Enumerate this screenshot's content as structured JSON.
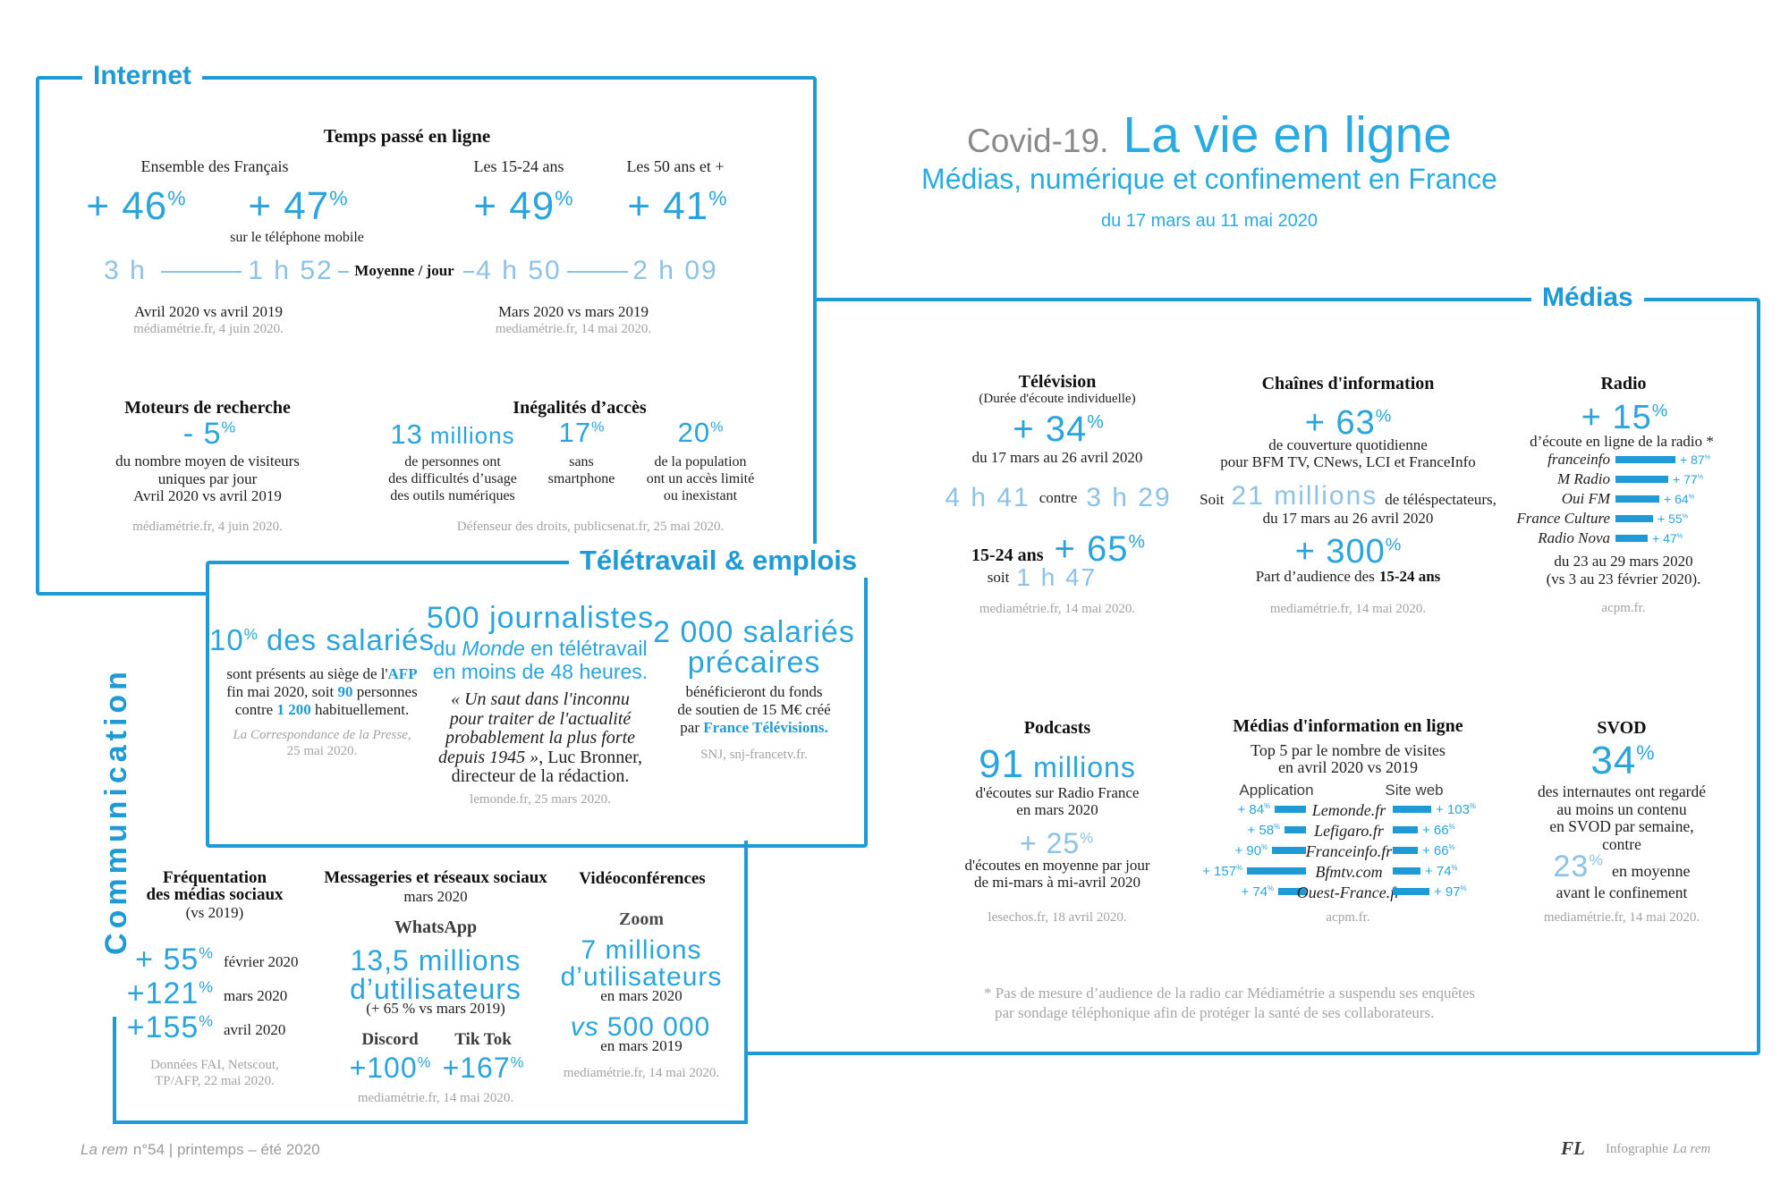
{
  "sym": {
    "pct": "%"
  },
  "colors": {
    "frame": "#1e9ad6",
    "accent": "#2aa4dd",
    "light": "#8cc2e8",
    "title": "#29abe2",
    "muted": "#a3a3a3",
    "covid_gray": "#8a8a8a"
  },
  "header": {
    "covid": "Covid-19.",
    "title": "La vie en ligne",
    "subtitle": "Médias, numérique et confinement en France",
    "period": "du 17 mars au 11 mai 2020"
  },
  "internet": {
    "label": "Internet",
    "time": {
      "heading": "Temps passé en ligne",
      "col1_label": "Ensemble des Français",
      "col3_label": "Les 15-24 ans",
      "col4_label": "Les 50 ans et +",
      "pct1": "+ 46",
      "pct2": "+ 47",
      "pct3": "+ 49",
      "pct4": "+ 41",
      "mobile_note": "sur le téléphone mobile",
      "t1": "3 h",
      "t2": "1 h 52",
      "t3": "4 h 50",
      "t4": "2 h 09",
      "avg": "Moyenne / jour",
      "src_left1": "Avril 2020 vs avril 2019",
      "src_left2": "médiamétrie.fr, 4 juin 2020.",
      "src_right1": "Mars 2020 vs mars 2019",
      "src_right2": "mediamétrie.fr, 14 mai 2020."
    },
    "search": {
      "heading": "Moteurs de recherche",
      "pct": "- 5",
      "l1": "du nombre moyen de visiteurs",
      "l2": "uniques par jour",
      "l3": "Avril 2020 vs avril 2019",
      "src": "médiamétrie.fr, 4 juin 2020."
    },
    "access": {
      "heading": "Inégalités d’accès",
      "big1": "13",
      "big1_unit": "millions",
      "c1l1": "de personnes ont",
      "c1l2": "des difficultés d’usage",
      "c1l3": "des outils numériques",
      "big2": "17",
      "c2l1": "sans",
      "c2l2": "smartphone",
      "big3": "20",
      "c3l1": "de la population",
      "c3l2": "ont un accès limité",
      "c3l3": "ou inexistant",
      "src": "Défenseur des droits, publicsenat.fr, 25 mai 2020."
    }
  },
  "medias": {
    "label": "Médias",
    "tv": {
      "heading": "Télévision",
      "sub": "(Durée d'écoute individuelle)",
      "pct": "+ 34",
      "caption": "du 17 mars au 26 avril 2020",
      "t1": "4 h 41",
      "vsword": "contre",
      "t2": "3 h 29",
      "youth": "15-24 ans",
      "youth_pct": "+ 65",
      "soit": "soit",
      "youth_t": "1 h 47",
      "src": "mediamétrie.fr, 14 mai 2020."
    },
    "news": {
      "heading": "Chaînes d'information",
      "pct": "+ 63",
      "l1": "de couverture quotidienne",
      "l2": "pour BFM TV, CNews, LCI et FranceInfo",
      "soit": "Soit",
      "big": "21 millions",
      "post": "de téléspectateurs,",
      "period": "du 17 mars au 26 avril 2020",
      "pct2": "+ 300",
      "share_pre": "Part d’audience des",
      "share_em": "15-24 ans",
      "src": "mediamétrie.fr, 14 mai 2020."
    },
    "radio": {
      "heading": "Radio",
      "pct": "+ 15",
      "caption": "d’écoute en ligne de la radio *",
      "bars": [
        {
          "name": "franceinfo",
          "value": 87,
          "label": "+ 87"
        },
        {
          "name": "M Radio",
          "value": 77,
          "label": "+ 77"
        },
        {
          "name": "Oui FM",
          "value": 64,
          "label": "+ 64"
        },
        {
          "name": "France Culture",
          "value": 55,
          "label": "+ 55"
        },
        {
          "name": "Radio Nova",
          "value": 47,
          "label": "+ 47"
        }
      ],
      "period1": "du 23 au 29 mars 2020",
      "period2": "(vs 3 au 23 février 2020).",
      "src": "acpm.fr."
    },
    "podcasts": {
      "heading": "Podcasts",
      "big": "91",
      "unit": "millions",
      "l1": "d'écoutes sur Radio France",
      "l2": "en mars 2020",
      "pct": "+ 25",
      "l3": "d'écoutes en moyenne par jour",
      "l4": "de mi-mars à mi-avril 2020",
      "src": "lesechos.fr, 18 avril 2020."
    },
    "online": {
      "heading": "Médias d'information en ligne",
      "sub1": "Top 5 par le nombre de visites",
      "sub2": "en avril 2020 vs 2019",
      "col_app": "Application",
      "col_web": "Site web",
      "rows": [
        {
          "name": "Lemonde.fr",
          "app": 84,
          "app_label": "+ 84",
          "web": 103,
          "web_label": "+ 103"
        },
        {
          "name": "Lefigaro.fr",
          "app": 58,
          "app_label": "+ 58",
          "web": 66,
          "web_label": "+ 66"
        },
        {
          "name": "Franceinfo.fr",
          "app": 90,
          "app_label": "+ 90",
          "web": 66,
          "web_label": "+ 66"
        },
        {
          "name": "Bfmtv.com",
          "app": 157,
          "app_label": "+ 157",
          "web": 74,
          "web_label": "+ 74"
        },
        {
          "name": "Ouest-France.fr",
          "app": 74,
          "app_label": "+ 74",
          "web": 97,
          "web_label": "+ 97"
        }
      ],
      "src": "acpm.fr."
    },
    "svod": {
      "heading": "SVOD",
      "pct": "34",
      "l1": "des internautes ont regardé",
      "l2": "au moins un contenu",
      "l3": "en SVOD par semaine,",
      "l4": "contre",
      "pct2": "23",
      "pct2_post": "en moyenne",
      "l5": "avant le confinement",
      "src": "mediamétrie.fr, 14 mai 2020."
    },
    "footnote1": "* Pas de mesure d’audience de la radio car Médiamétrie a suspendu ses enquêtes",
    "footnote2": "par sondage téléphonique afin de protéger la santé de ses collaborateurs."
  },
  "teletravail": {
    "label": "Télétravail & emplois",
    "afp": {
      "big": "10",
      "big_post": "des salariés",
      "l1_pre": "sont présents au siège de l'",
      "l1_em": "AFP",
      "l2_pre": "fin mai 2020, soit ",
      "l2_em": "90",
      "l2_post": " personnes",
      "l3_pre": "contre ",
      "l3_em": "1 200",
      "l3_post": " habituellement.",
      "src1": "La Correspondance de la Presse,",
      "src2": "25 mai 2020."
    },
    "monde": {
      "big": "500 journalistes",
      "sub_pre": "du ",
      "sub_it": "Monde",
      "sub_post": " en télétravail",
      "sub2": "en moins de 48 heures.",
      "q1": "« Un saut dans l'inconnu",
      "q2": "pour traiter de l'actualité",
      "q3": "probablement la plus forte",
      "q4_it": "depuis 1945 »",
      "q4": ", Luc Bronner,",
      "q5": "directeur de la rédaction.",
      "src": "lemonde.fr, 25 mars 2020."
    },
    "ftv": {
      "big1": "2 000 salariés",
      "big2": "précaires",
      "l1": "bénéficieront du fonds",
      "l2": "de soutien de 15 M€ créé",
      "l3_pre": "par ",
      "l3_em": "France Télévisions.",
      "src": "SNJ, snj-francetv.fr."
    }
  },
  "communication": {
    "label": "Communication",
    "social": {
      "h1": "Fréquentation",
      "h2": "des médias sociaux",
      "h3": "(vs 2019)",
      "rows": [
        {
          "pct": "+ 55",
          "label": "février 2020"
        },
        {
          "pct": "+121",
          "label": "mars 2020"
        },
        {
          "pct": "+155",
          "label": "avril 2020"
        }
      ],
      "src1": "Données FAI, Netscout,",
      "src2": "TP/AFP, 22 mai 2020."
    },
    "messaging": {
      "heading": "Messageries et réseaux sociaux",
      "sub": "mars 2020",
      "app1": "WhatsApp",
      "big": "13,5 millions",
      "big2": "d’utilisateurs",
      "note": "(+ 65 % vs mars 2019)",
      "app2": "Discord",
      "app2_pct": "+100",
      "app3": "Tik Tok",
      "app3_pct": "+167",
      "src": "mediamétrie.fr, 14 mai 2020."
    },
    "video": {
      "heading": "Vidéoconférences",
      "app": "Zoom",
      "big": "7 millions",
      "big2": "d’utilisateurs",
      "sub1": "en mars 2020",
      "vs_it": "vs",
      "vs_num": "500 000",
      "sub2": "en mars 2019",
      "src": "mediamétrie.fr, 14 mai 2020."
    }
  },
  "footer": {
    "left_it": "La rem",
    "left_text": "n°54 | printemps – été 2020",
    "initials": "FL",
    "credit": "Infographie",
    "credit_it": "La rem"
  }
}
